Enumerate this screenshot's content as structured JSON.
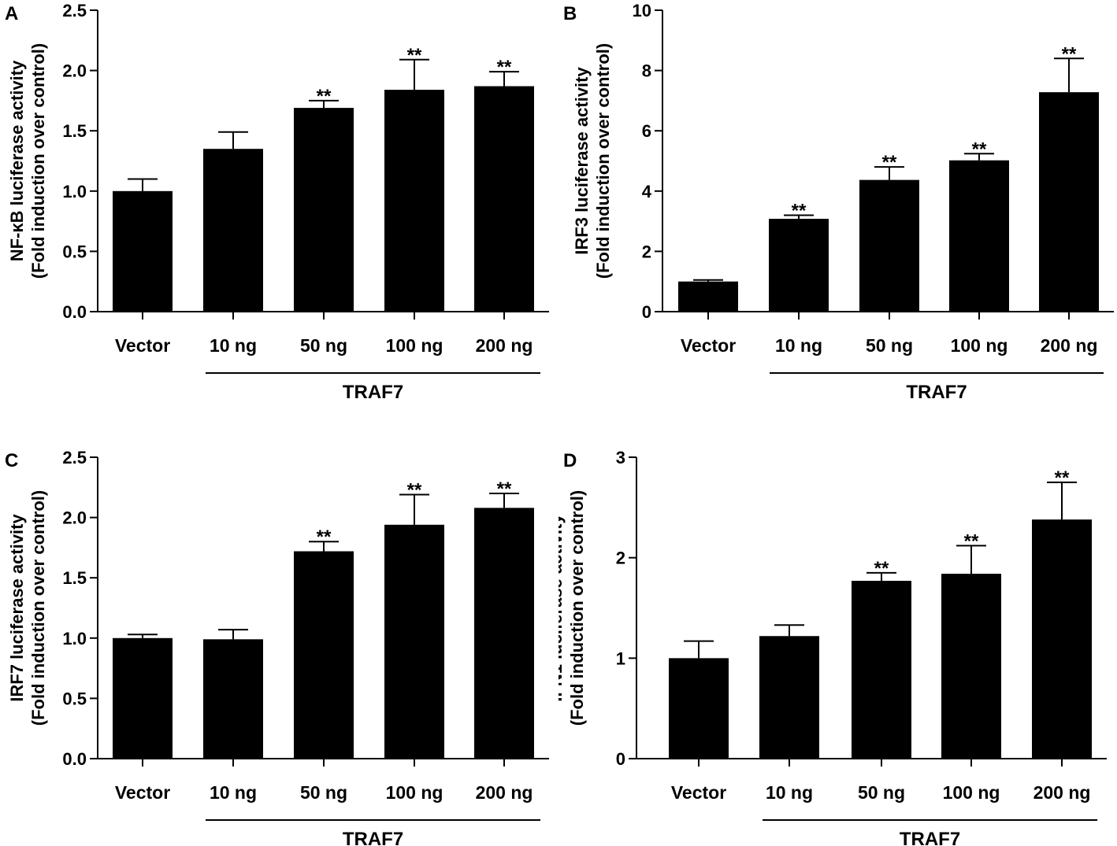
{
  "chart_data": [
    {
      "panel_label": "A",
      "type": "bar",
      "categories": [
        "Vector",
        "10 ng",
        "50 ng",
        "100 ng",
        "200 ng"
      ],
      "group_label": "TRAF7",
      "ylabel_line1": "NF-κB luciferase activity",
      "ylabel_line2": "(Fold induction over control)",
      "ylim": [
        0,
        2.5
      ],
      "yticks": [
        "0.0",
        "0.5",
        "1.0",
        "1.5",
        "2.0",
        "2.5"
      ],
      "values": [
        1.0,
        1.35,
        1.69,
        1.84,
        1.87
      ],
      "errors": [
        0.1,
        0.14,
        0.06,
        0.25,
        0.12
      ],
      "significance": [
        "",
        "",
        "**",
        "**",
        "**"
      ]
    },
    {
      "panel_label": "B",
      "type": "bar",
      "categories": [
        "Vector",
        "10 ng",
        "50 ng",
        "100 ng",
        "200 ng"
      ],
      "group_label": "TRAF7",
      "ylabel_line1": "IRF3 luciferase activity",
      "ylabel_line2": "(Fold induction over control)",
      "ylim": [
        0,
        10
      ],
      "yticks": [
        "0",
        "2",
        "4",
        "6",
        "8",
        "10"
      ],
      "values": [
        1.0,
        3.08,
        4.37,
        5.02,
        7.28
      ],
      "errors": [
        0.05,
        0.12,
        0.43,
        0.22,
        1.12
      ],
      "significance": [
        "",
        "**",
        "**",
        "**",
        "**"
      ]
    },
    {
      "panel_label": "C",
      "type": "bar",
      "categories": [
        "Vector",
        "10 ng",
        "50 ng",
        "100 ng",
        "200 ng"
      ],
      "group_label": "TRAF7",
      "ylabel_line1": "IRF7 luciferase activity",
      "ylabel_line2": "(Fold induction over control)",
      "ylim": [
        0,
        2.5
      ],
      "yticks": [
        "0.0",
        "0.5",
        "1.0",
        "1.5",
        "2.0",
        "2.5"
      ],
      "values": [
        1.0,
        0.99,
        1.72,
        1.94,
        2.08
      ],
      "errors": [
        0.03,
        0.08,
        0.08,
        0.25,
        0.12
      ],
      "significance": [
        "",
        "",
        "**",
        "**",
        "**"
      ]
    },
    {
      "panel_label": "D",
      "type": "bar",
      "categories": [
        "Vector",
        "10 ng",
        "50 ng",
        "100 ng",
        "200 ng"
      ],
      "group_label": "TRAF7",
      "ylabel_line1": "IFN1 luciferase activity",
      "ylabel_line2": "(Fold induction over control)",
      "ylim": [
        0,
        3
      ],
      "yticks": [
        "0",
        "1",
        "2",
        "3"
      ],
      "values": [
        1.0,
        1.22,
        1.77,
        1.84,
        2.38
      ],
      "errors": [
        0.17,
        0.11,
        0.08,
        0.28,
        0.37
      ],
      "significance": [
        "",
        "",
        "**",
        "**",
        "**"
      ]
    }
  ]
}
